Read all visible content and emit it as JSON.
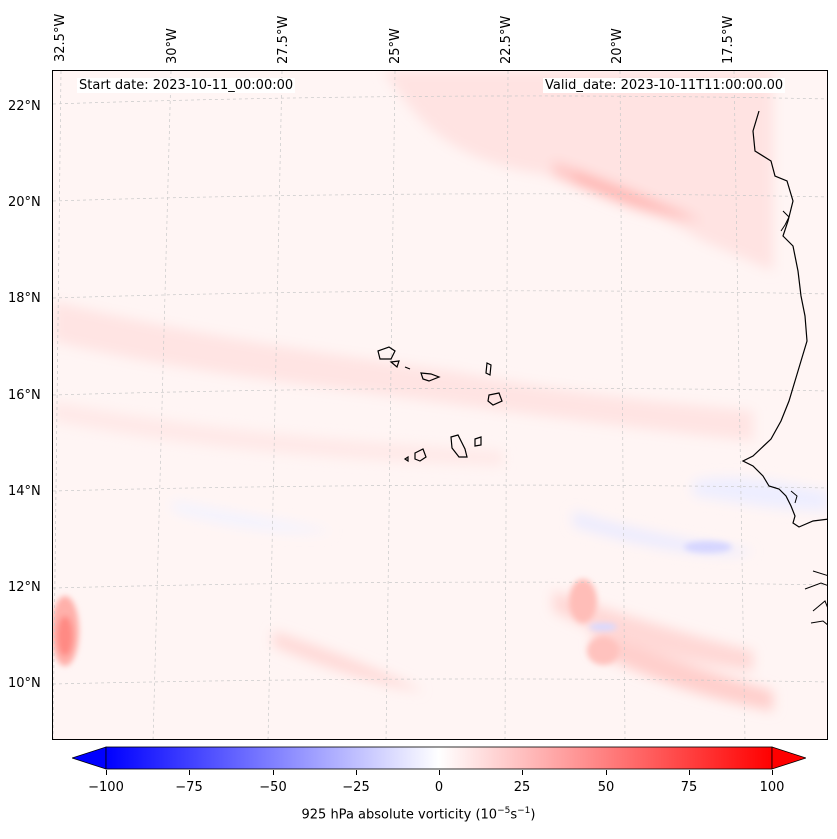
{
  "map": {
    "projection_note": "",
    "longitude_labels": [
      "32.5°W",
      "30°W",
      "27.5°W",
      "25°W",
      "22.5°W",
      "20°W",
      "17.5°W"
    ],
    "latitude_labels": [
      "22°N",
      "20°N",
      "18°N",
      "16°N",
      "14°N",
      "12°N",
      "10°N"
    ],
    "start_date_text": "Start date: 2023-10-11_00:00:00",
    "valid_date_text": "Valid_date: 2023-10-11T11:00:00.00",
    "features": [
      "West African coastline",
      "Cape Verde islands"
    ]
  },
  "colorbar": {
    "min": -100,
    "max": 100,
    "ticks": [
      "−100",
      "−75",
      "−50",
      "−25",
      "0",
      "25",
      "50",
      "75",
      "100"
    ],
    "label_main": "925 hPa absolute vorticity (10",
    "label_sup1": "−5",
    "label_mid": "s",
    "label_sup2": "−1",
    "label_end": ")",
    "colors": {
      "low": "#0000ff",
      "mid": "#ffffff",
      "high": "#ff0000"
    }
  }
}
